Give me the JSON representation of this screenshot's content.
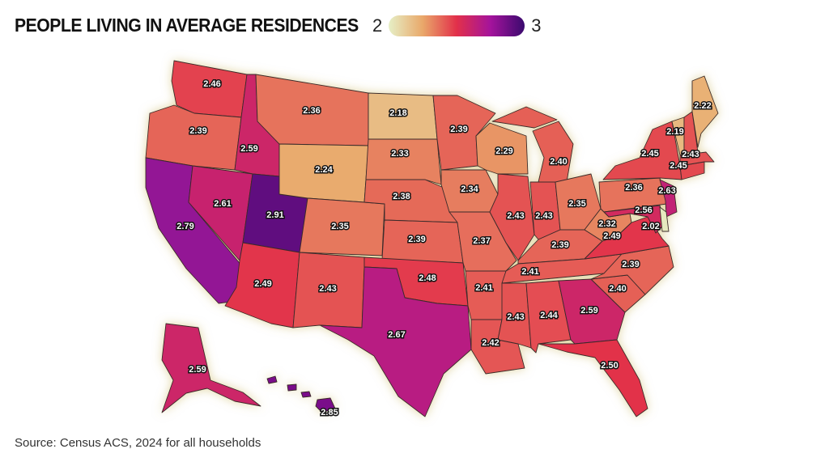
{
  "title": "PEOPLE LIVING IN AVERAGE RESIDENCES",
  "legend": {
    "min_label": "2",
    "max_label": "3",
    "min": 2,
    "max": 3,
    "colors": [
      "#e6efc6",
      "#e9a86a",
      "#e2304a",
      "#a4139c",
      "#3a0a6e"
    ]
  },
  "source": "Source: Census ACS, 2024 for all households",
  "states": {
    "WA": 2.46,
    "OR": 2.39,
    "CA": 2.79,
    "ID": 2.59,
    "NV": 2.61,
    "UT": 2.91,
    "AZ": 2.49,
    "MT": 2.36,
    "WY": 2.24,
    "CO": 2.35,
    "NM": 2.43,
    "ND": 2.18,
    "SD": 2.33,
    "NE": 2.38,
    "KS": 2.39,
    "OK": 2.48,
    "TX": 2.67,
    "MN": 2.39,
    "IA": 2.34,
    "MO": 2.37,
    "AR": 2.41,
    "LA": 2.42,
    "WI": 2.29,
    "IL": 2.43,
    "MI": 2.4,
    "IN": 2.43,
    "OH": 2.35,
    "KY": 2.39,
    "TN": 2.41,
    "MS": 2.43,
    "AL": 2.44,
    "GA": 2.59,
    "FL": 2.5,
    "SC": 2.4,
    "NC": 2.39,
    "VA": 2.49,
    "WV": 2.32,
    "PA": 2.36,
    "NY": 2.45,
    "NJ": 2.63,
    "MD": 2.56,
    "DE": 2.02,
    "CT": 2.45,
    "MA": 2.43,
    "VT": 2.19,
    "NH": 2.43,
    "ME": 2.22,
    "AK": 2.59,
    "HI": 2.85
  }
}
